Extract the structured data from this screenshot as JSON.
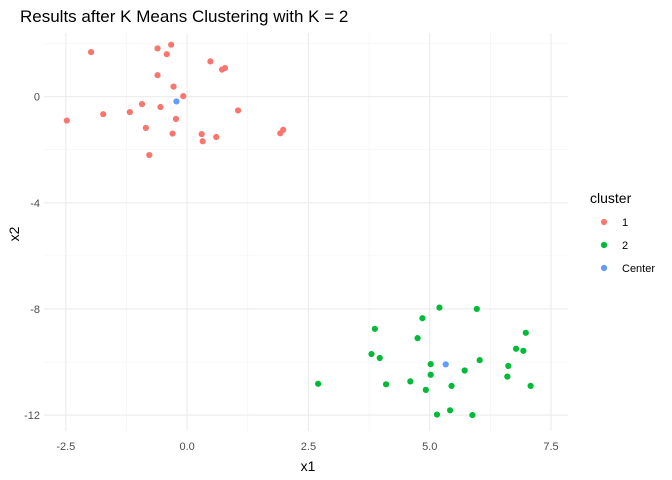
{
  "chart_data": {
    "type": "scatter",
    "title": "Results after K Means Clustering with K = 2",
    "xlabel": "x1",
    "ylabel": "x2",
    "xlim": [
      -2.5,
      7.5
    ],
    "ylim": [
      -12,
      0
    ],
    "x_ticks": [
      -2.5,
      0.0,
      2.5,
      5.0,
      7.5
    ],
    "x_tick_labels": [
      "-2.5",
      "0.0",
      "2.5",
      "5.0",
      "7.5"
    ],
    "y_ticks": [
      -12,
      -8,
      -4,
      0
    ],
    "y_tick_labels": [
      "-12",
      "-8",
      "-4",
      "0"
    ],
    "grid": true,
    "legend": {
      "title": "cluster",
      "position": "right",
      "entries": [
        {
          "label": "1",
          "color": "#F8766D"
        },
        {
          "label": "2",
          "color": "#00BA38"
        },
        {
          "label": "Center",
          "color": "#619CFF"
        }
      ]
    },
    "series": [
      {
        "name": "1",
        "color": "#F8766D",
        "points": [
          {
            "x": -2.48,
            "y": -0.9
          },
          {
            "x": -1.98,
            "y": 1.68
          },
          {
            "x": -1.73,
            "y": -0.66
          },
          {
            "x": -1.18,
            "y": -0.58
          },
          {
            "x": -0.93,
            "y": -0.28
          },
          {
            "x": -0.85,
            "y": -1.18
          },
          {
            "x": -0.78,
            "y": -2.2
          },
          {
            "x": -0.61,
            "y": 1.82
          },
          {
            "x": -0.61,
            "y": 0.81
          },
          {
            "x": -0.55,
            "y": -0.39
          },
          {
            "x": -0.42,
            "y": 1.6
          },
          {
            "x": -0.33,
            "y": 1.96
          },
          {
            "x": -0.3,
            "y": -1.39
          },
          {
            "x": -0.28,
            "y": 0.38
          },
          {
            "x": -0.23,
            "y": -0.84
          },
          {
            "x": -0.08,
            "y": 0.02
          },
          {
            "x": 0.3,
            "y": -1.41
          },
          {
            "x": 0.32,
            "y": -1.68
          },
          {
            "x": 0.48,
            "y": 1.33
          },
          {
            "x": 0.6,
            "y": -1.52
          },
          {
            "x": 0.72,
            "y": 1.02
          },
          {
            "x": 0.78,
            "y": 1.08
          },
          {
            "x": 1.05,
            "y": -0.52
          },
          {
            "x": 1.92,
            "y": -1.38
          },
          {
            "x": 1.98,
            "y": -1.25
          }
        ]
      },
      {
        "name": "2",
        "color": "#00BA38",
        "points": [
          {
            "x": 2.7,
            "y": -10.82
          },
          {
            "x": 3.8,
            "y": -9.7
          },
          {
            "x": 3.87,
            "y": -8.75
          },
          {
            "x": 3.97,
            "y": -9.85
          },
          {
            "x": 4.1,
            "y": -10.84
          },
          {
            "x": 4.6,
            "y": -10.73
          },
          {
            "x": 4.75,
            "y": -9.1
          },
          {
            "x": 4.85,
            "y": -8.35
          },
          {
            "x": 4.92,
            "y": -11.05
          },
          {
            "x": 5.02,
            "y": -10.48
          },
          {
            "x": 5.02,
            "y": -10.08
          },
          {
            "x": 5.15,
            "y": -11.98
          },
          {
            "x": 5.2,
            "y": -7.95
          },
          {
            "x": 5.42,
            "y": -11.82
          },
          {
            "x": 5.45,
            "y": -10.9
          },
          {
            "x": 5.72,
            "y": -10.32
          },
          {
            "x": 5.88,
            "y": -12.0
          },
          {
            "x": 5.97,
            "y": -8.0
          },
          {
            "x": 6.03,
            "y": -9.93
          },
          {
            "x": 6.6,
            "y": -10.55
          },
          {
            "x": 6.62,
            "y": -10.15
          },
          {
            "x": 6.78,
            "y": -9.5
          },
          {
            "x": 6.93,
            "y": -9.58
          },
          {
            "x": 6.98,
            "y": -8.9
          },
          {
            "x": 7.08,
            "y": -10.9
          }
        ]
      },
      {
        "name": "Center",
        "color": "#619CFF",
        "points": [
          {
            "x": -0.22,
            "y": -0.18
          },
          {
            "x": 5.33,
            "y": -10.09
          }
        ]
      }
    ]
  }
}
